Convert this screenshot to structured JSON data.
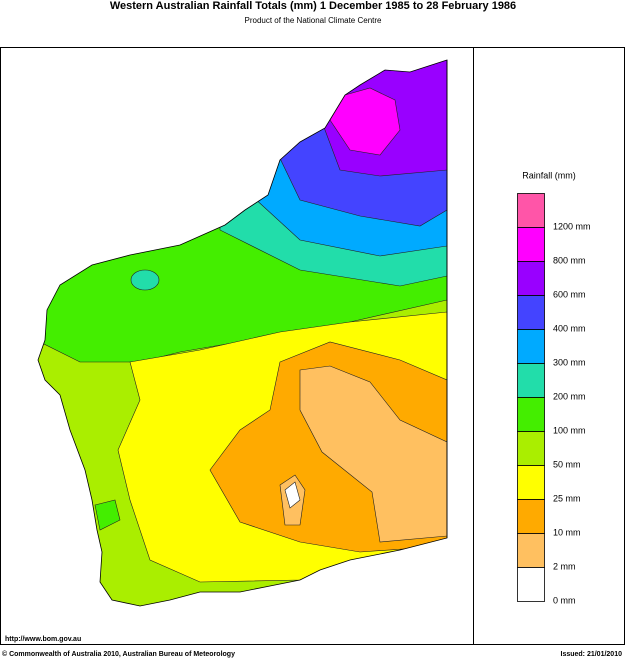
{
  "header": {
    "title": "Western Australian Rainfall Totals (mm) 1 December 1985 to 28 February 1986",
    "subtitle": "Product of the National Climate Centre"
  },
  "legend": {
    "title": "Rainfall (mm)",
    "colors": [
      "#ff55a8",
      "#ff00ff",
      "#9900ff",
      "#4444ff",
      "#00aaff",
      "#22ddaa",
      "#44ee00",
      "#aaee00",
      "#ffff00",
      "#ffaa00",
      "#ffc060",
      "#ffffff"
    ],
    "labels": [
      "1200 mm",
      "800 mm",
      "600 mm",
      "400 mm",
      "300 mm",
      "200 mm",
      "100 mm",
      "50 mm",
      "25 mm",
      "10 mm",
      "2 mm",
      "0 mm"
    ]
  },
  "footer": {
    "url": "http://www.bom.gov.au",
    "copyright": "© Commonwealth of Australia 2010, Australian Bureau of Meteorology",
    "issued": "Issued: 21/01/2010"
  }
}
